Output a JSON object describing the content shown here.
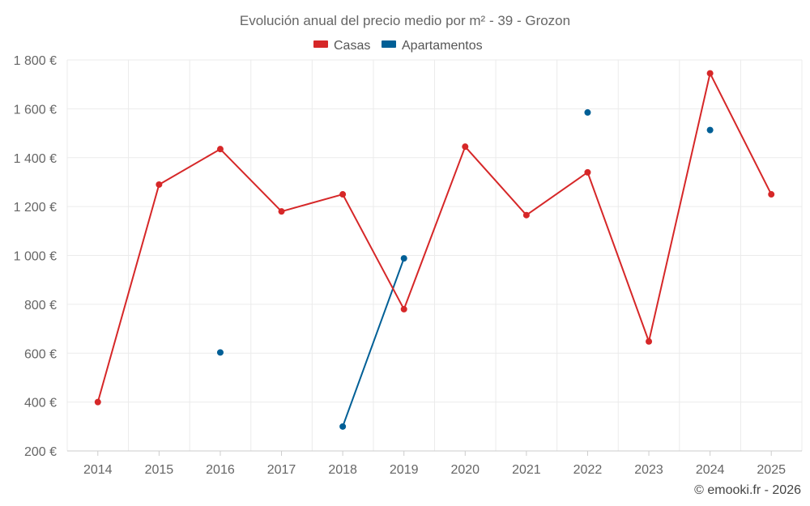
{
  "chart_data": {
    "type": "line",
    "title": "Evolución anual del precio medio por m² - 39 - Grozon",
    "xlabel": "",
    "ylabel": "",
    "categories": [
      "2014",
      "2015",
      "2016",
      "2017",
      "2018",
      "2019",
      "2020",
      "2021",
      "2022",
      "2023",
      "2024",
      "2025"
    ],
    "ylim": [
      200,
      1800
    ],
    "yticks": [
      200,
      400,
      600,
      800,
      1000,
      1200,
      1400,
      1600,
      1800
    ],
    "ytick_labels": [
      "200 €",
      "400 €",
      "600 €",
      "800 €",
      "1 000 €",
      "1 200 €",
      "1 400 €",
      "1 600 €",
      "1 800 €"
    ],
    "grid": true,
    "legend_position": "top-center",
    "series": [
      {
        "name": "Casas",
        "color": "#d62728",
        "values": [
          400,
          1290,
          1435,
          1180,
          1250,
          780,
          1445,
          1165,
          1340,
          648,
          1745,
          1250
        ]
      },
      {
        "name": "Apartamentos",
        "color": "#005f96",
        "values": [
          null,
          null,
          603,
          null,
          300,
          988,
          null,
          null,
          1585,
          null,
          1513,
          null
        ]
      }
    ],
    "credit": "© emooki.fr - 2026"
  }
}
